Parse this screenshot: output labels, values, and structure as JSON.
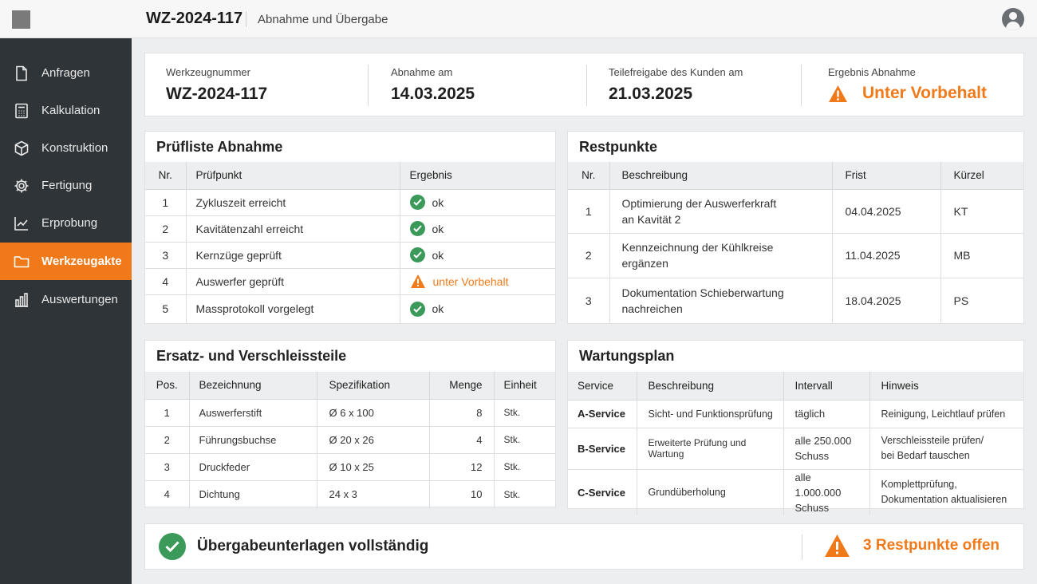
{
  "header": {
    "title": "WZ-2024-117",
    "subtitle": "Abnahme und Übergabe"
  },
  "sidebar": {
    "items": [
      {
        "label": "Anfragen",
        "icon": "document-icon"
      },
      {
        "label": "Kalkulation",
        "icon": "calculator-icon"
      },
      {
        "label": "Konstruktion",
        "icon": "cube-icon"
      },
      {
        "label": "Fertigung",
        "icon": "gear-icon"
      },
      {
        "label": "Erprobung",
        "icon": "line-chart-icon"
      },
      {
        "label": "Werkzeugakte",
        "icon": "folder-icon",
        "active": true
      },
      {
        "label": "Auswertungen",
        "icon": "bar-chart-icon"
      }
    ]
  },
  "summary": {
    "tool_number_label": "Werkzeugnummer",
    "tool_number": "WZ-2024-117",
    "acceptance_label": "Abnahme am",
    "acceptance_date": "14.03.2025",
    "release_label": "Teilefreigabe des Kunden am",
    "release_date": "21.03.2025",
    "result_label": "Ergebnis Abnahme",
    "result_value": "Unter Vorbehalt"
  },
  "checklist": {
    "title": "Prüfliste Abnahme",
    "headers": [
      "Nr.",
      "Prüfpunkt",
      "Ergebnis"
    ],
    "rows": [
      {
        "nr": "1",
        "point": "Zykluszeit erreicht",
        "result": "ok",
        "status": "ok"
      },
      {
        "nr": "2",
        "point": "Kavitätenzahl erreicht",
        "result": "ok",
        "status": "ok"
      },
      {
        "nr": "3",
        "point": "Kernzüge geprüft",
        "result": "ok",
        "status": "ok"
      },
      {
        "nr": "4",
        "point": "Auswerfer geprüft",
        "result": "unter Vorbehalt",
        "status": "warning"
      },
      {
        "nr": "5",
        "point": "Massprotokoll vorgelegt",
        "result": "ok",
        "status": "ok"
      }
    ]
  },
  "open_points": {
    "title": "Restpunkte",
    "headers": [
      "Nr.",
      "Beschreibung",
      "Frist",
      "Kürzel"
    ],
    "rows": [
      {
        "nr": "1",
        "desc1": "Optimierung der Auswerferkraft",
        "desc2": "an Kavität 2",
        "due": "04.04.2025",
        "initials": "KT"
      },
      {
        "nr": "2",
        "desc1": "Kennzeichnung der Kühlkreise",
        "desc2": "ergänzen",
        "due": "11.04.2025",
        "initials": "MB"
      },
      {
        "nr": "3",
        "desc1": "Dokumentation Schieberwartung",
        "desc2": "nachreichen",
        "due": "18.04.2025",
        "initials": "PS"
      }
    ]
  },
  "spare_parts": {
    "title": "Ersatz- und Verschleissteile",
    "headers": [
      "Pos.",
      "Bezeichnung",
      "Spezifikation",
      "Menge",
      "Einheit"
    ],
    "rows": [
      {
        "pos": "1",
        "name": "Auswerferstift",
        "spec": "Ø 6 x 100",
        "qty": "8",
        "unit": "Stk."
      },
      {
        "pos": "2",
        "name": "Führungsbuchse",
        "spec": "Ø 20 x 26",
        "qty": "4",
        "unit": "Stk."
      },
      {
        "pos": "3",
        "name": "Druckfeder",
        "spec": "Ø 10 x 25",
        "qty": "12",
        "unit": "Stk."
      },
      {
        "pos": "4",
        "name": "Dichtung",
        "spec": "24 x 3",
        "qty": "10",
        "unit": "Stk."
      }
    ]
  },
  "maintenance": {
    "title": "Wartungsplan",
    "headers": [
      "Service",
      "Beschreibung",
      "Intervall",
      "Hinweis"
    ],
    "rows": [
      {
        "service": "A-Service",
        "desc": "Sicht- und Funktionsprüfung",
        "interval1": "täglich",
        "interval2": "",
        "note1": "Reinigung, Leichtlauf prüfen",
        "note2": ""
      },
      {
        "service": "B-Service",
        "desc": "Erweiterte Prüfung und Wartung",
        "interval1": "alle 250.000",
        "interval2": "Schuss",
        "note1": "Verschleissteile prüfen/",
        "note2": "bei Bedarf tauschen"
      },
      {
        "service": "C-Service",
        "desc": "Grundüberholung",
        "interval1": "alle 1.000.000",
        "interval2": "Schuss",
        "note1": "Komplettprüfung,",
        "note2": "Dokumentation aktualisieren"
      }
    ]
  },
  "footer": {
    "docs_status": "Übergabeunterlagen vollständig",
    "open_points_status": "3 Restpunkte offen"
  },
  "colors": {
    "accent": "#f07a1a",
    "success": "#3b9a5a",
    "sidebar": "#2f3438"
  }
}
